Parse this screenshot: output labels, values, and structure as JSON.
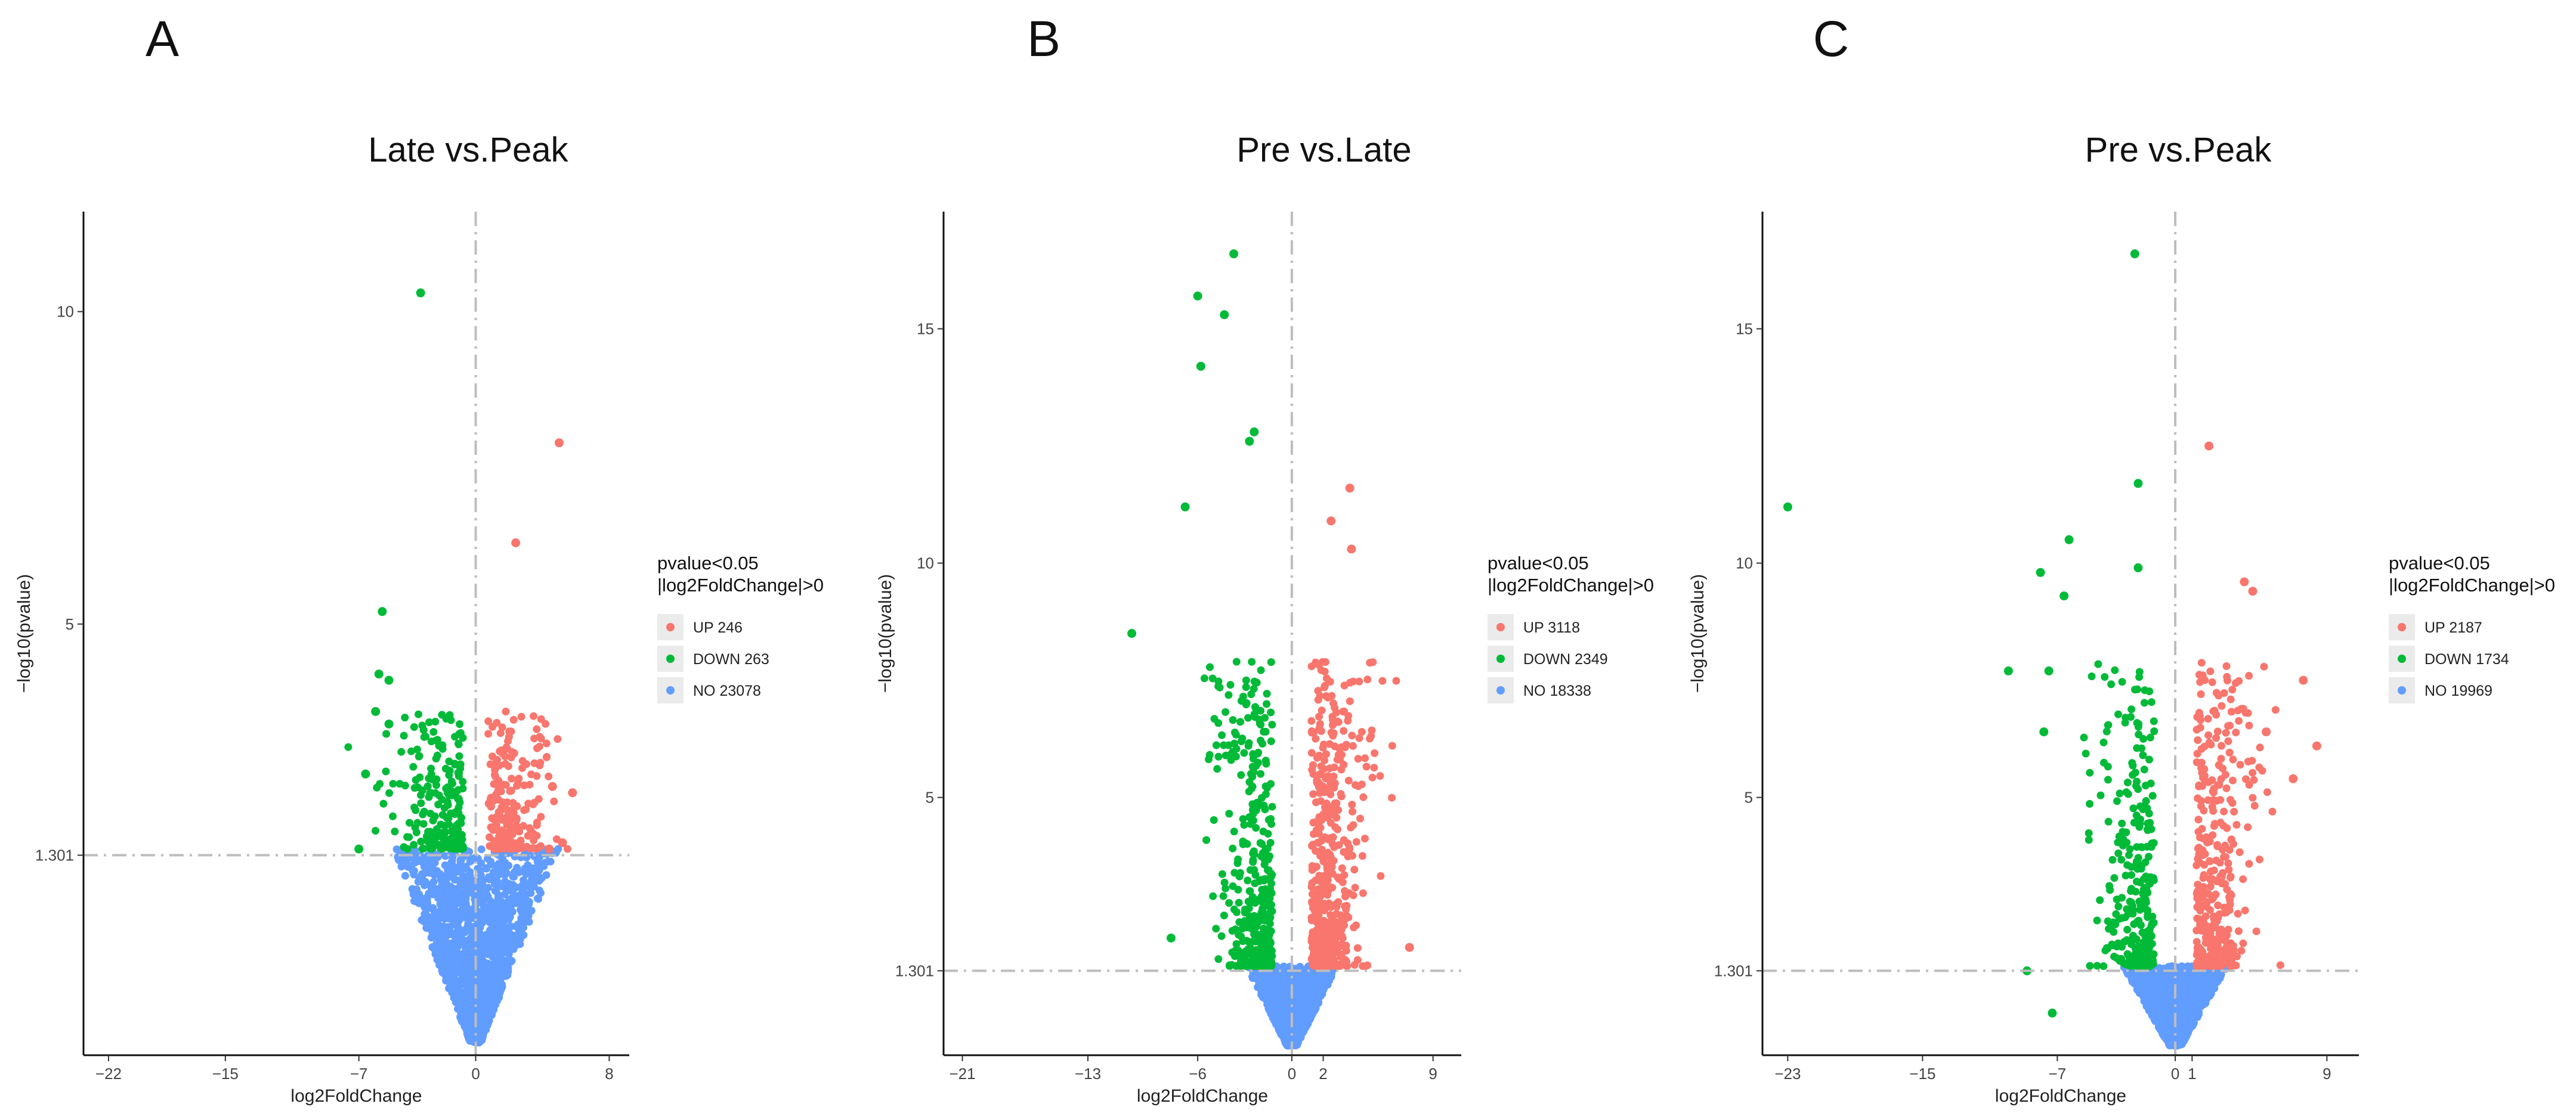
{
  "figure": {
    "legend_title_line1": "pvalue<0.05",
    "legend_title_line2": "|log2FoldChange|>0",
    "colors": {
      "UP": "#F8766D",
      "DOWN": "#00BA38",
      "NO": "#619CFF",
      "threshold": "#BDBDBD"
    }
  },
  "chart_data": [
    {
      "panel": "A",
      "type": "scatter",
      "title": "Late vs.Peak",
      "xlabel": "log2FoldChange",
      "ylabel": "−log10(pvalue)",
      "xlim": [
        -23.5,
        9.2
      ],
      "ylim": [
        -1.9,
        11.6
      ],
      "xticks": [
        -22,
        -15,
        -7,
        0,
        8
      ],
      "yticks": [
        10,
        5,
        1.301
      ],
      "x_threshold": 0,
      "y_threshold": 1.301,
      "legend": [
        {
          "key": "UP",
          "label": "UP 246",
          "count": 246
        },
        {
          "key": "DOWN",
          "label": "DOWN 263",
          "count": 263
        },
        {
          "key": "NO",
          "label": "NO 23078",
          "count": 23078
        }
      ],
      "highlight_points": {
        "UP": [
          [
            5,
            7.9
          ],
          [
            2.4,
            6.3
          ],
          [
            4.6,
            2.4
          ],
          [
            5.8,
            2.3
          ],
          [
            4.4,
            1.4
          ],
          [
            5.2,
            1.5
          ]
        ],
        "DOWN": [
          [
            -3.3,
            10.3
          ],
          [
            -5.6,
            5.2
          ],
          [
            -5.8,
            4.2
          ],
          [
            -5.2,
            4.1
          ],
          [
            -6,
            3.6
          ],
          [
            -5.2,
            3.4
          ],
          [
            -7,
            1.4
          ],
          [
            -6.6,
            2.6
          ]
        ]
      }
    },
    {
      "panel": "B",
      "type": "scatter",
      "title": "Pre vs.Late",
      "xlabel": "log2FoldChange",
      "ylabel": "−log10(pvalue)",
      "xlim": [
        -22.2,
        10.8
      ],
      "ylim": [
        -0.5,
        17.5
      ],
      "xticks": [
        -21,
        -13,
        -6,
        0,
        2,
        9
      ],
      "yticks": [
        15,
        10,
        5,
        1.301
      ],
      "x_threshold": 0,
      "y_threshold": 1.301,
      "legend": [
        {
          "key": "UP",
          "label": "UP 3118",
          "count": 3118
        },
        {
          "key": "DOWN",
          "label": "DOWN 2349",
          "count": 2349
        },
        {
          "key": "NO",
          "label": "NO 18338",
          "count": 18338
        }
      ],
      "highlight_points": {
        "UP": [
          [
            3.7,
            11.6
          ],
          [
            2.5,
            10.9
          ],
          [
            3.8,
            10.3
          ],
          [
            7.5,
            1.8
          ]
        ],
        "DOWN": [
          [
            -3.7,
            16.6
          ],
          [
            -6,
            15.7
          ],
          [
            -4.3,
            15.3
          ],
          [
            -5.8,
            14.2
          ],
          [
            -2.4,
            12.8
          ],
          [
            -2.7,
            12.6
          ],
          [
            -6.8,
            11.2
          ],
          [
            -10.2,
            8.5
          ],
          [
            -7.7,
            2
          ]
        ]
      }
    },
    {
      "panel": "C",
      "type": "scatter",
      "title": "Pre vs.Peak",
      "xlabel": "log2FoldChange",
      "ylabel": "−log10(pvalue)",
      "xlim": [
        -24.5,
        10.9
      ],
      "ylim": [
        -0.5,
        17.5
      ],
      "xticks": [
        -23,
        -15,
        -7,
        0,
        1,
        9
      ],
      "yticks": [
        15,
        10,
        5,
        1.301
      ],
      "x_threshold": 0,
      "y_threshold": 1.301,
      "legend": [
        {
          "key": "UP",
          "label": "UP 2187",
          "count": 2187
        },
        {
          "key": "DOWN",
          "label": "DOWN 1734",
          "count": 1734
        },
        {
          "key": "NO",
          "label": "NO 19969",
          "count": 19969
        }
      ],
      "highlight_points": {
        "UP": [
          [
            2,
            12.5
          ],
          [
            4.1,
            9.6
          ],
          [
            4.6,
            9.4
          ],
          [
            7.6,
            7.5
          ],
          [
            8.4,
            6.1
          ],
          [
            5.4,
            6.4
          ],
          [
            7,
            5.4
          ]
        ],
        "DOWN": [
          [
            -2.4,
            16.6
          ],
          [
            -23,
            11.2
          ],
          [
            -2.2,
            11.7
          ],
          [
            -6.3,
            10.5
          ],
          [
            -8,
            9.8
          ],
          [
            -2.2,
            9.9
          ],
          [
            -6.6,
            9.3
          ],
          [
            -7.5,
            7.7
          ],
          [
            -9.9,
            7.7
          ],
          [
            -7.8,
            6.4
          ],
          [
            -8.8,
            1.3
          ],
          [
            -7.3,
            0.4
          ]
        ]
      }
    }
  ]
}
